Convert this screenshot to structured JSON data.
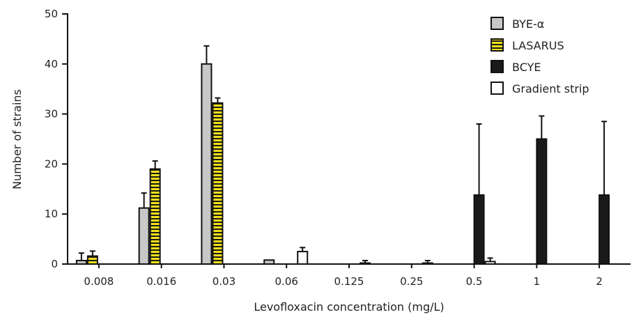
{
  "chart_data": {
    "type": "bar",
    "title": "",
    "xlabel": "Levofloxacin concentration (mg/L)",
    "ylabel": "Number of strains",
    "ylim": [
      0,
      50
    ],
    "yticks": [
      0,
      10,
      20,
      30,
      40,
      50
    ],
    "legend_position": "top-right",
    "grid": false,
    "categories": [
      "0.008",
      "0.016",
      "0.03",
      "0.06",
      "0.125",
      "0.25",
      "0.5",
      "1",
      "2"
    ],
    "series": [
      {
        "name": "BYE-α",
        "color": "#c8c8c8",
        "pattern": "solid",
        "values": [
          0.7,
          11.2,
          40,
          0.8,
          0,
          0,
          0,
          0,
          0
        ],
        "errors": [
          1.5,
          3.0,
          3.6,
          0,
          0,
          0,
          0,
          0,
          0
        ]
      },
      {
        "name": "LASARUS",
        "color": "#f2e01a",
        "pattern": "stripes",
        "values": [
          1.6,
          19,
          32.2,
          0,
          0,
          0,
          0,
          0,
          0
        ],
        "errors": [
          1.0,
          1.6,
          1.0,
          0,
          0,
          0,
          0,
          0,
          0
        ]
      },
      {
        "name": "BCYE",
        "color": "#1a1a1a",
        "pattern": "solid",
        "values": [
          0,
          0,
          0,
          0,
          0,
          0,
          13.8,
          25,
          13.8
        ],
        "errors": [
          0,
          0,
          0,
          0,
          0,
          0,
          14.2,
          4.6,
          14.7
        ]
      },
      {
        "name": "Gradient strip",
        "color": "#ffffff",
        "pattern": "outline",
        "values": [
          0,
          0,
          0,
          2.5,
          0.2,
          0.2,
          0.5,
          0,
          0
        ],
        "errors": [
          0,
          0,
          0,
          0.8,
          0.5,
          0.5,
          0.7,
          0,
          0
        ]
      }
    ]
  }
}
